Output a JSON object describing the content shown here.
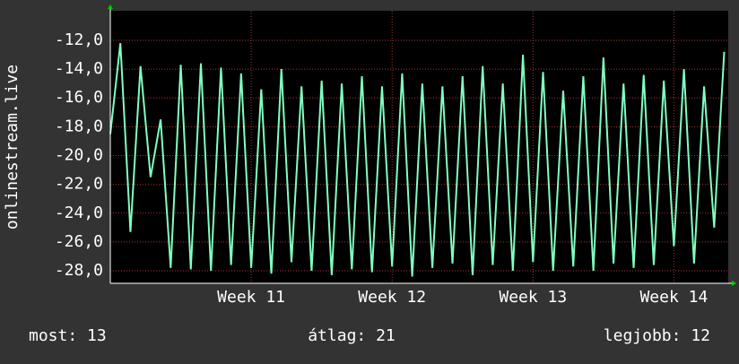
{
  "chart_data": {
    "type": "line",
    "ylabel": "onlinestream.live",
    "x": [
      0,
      0.5,
      1,
      1.5,
      2,
      2.5,
      3,
      3.5,
      4,
      4.5,
      5,
      5.5,
      6,
      6.5,
      7,
      7.5,
      8,
      8.5,
      9,
      9.5,
      10,
      10.5,
      11,
      11.5,
      12,
      12.5,
      13,
      13.5,
      14,
      14.5,
      15,
      15.5,
      16,
      16.5,
      17,
      17.5,
      18,
      18.5,
      19,
      19.5,
      20,
      20.5,
      21,
      21.5,
      22,
      22.5,
      23,
      23.5,
      24,
      24.5,
      25,
      25.5,
      26,
      26.5,
      27,
      27.5,
      28,
      28.5,
      29,
      29.5,
      30,
      30.5
    ],
    "series": [
      {
        "name": "onlinestream.live",
        "color": "#80ffc0",
        "values": [
          -18.5,
          -12.2,
          -25.3,
          -13.8,
          -21.5,
          -17.5,
          -27.8,
          -13.7,
          -27.9,
          -13.6,
          -28.0,
          -13.9,
          -27.6,
          -14.3,
          -27.8,
          -15.4,
          -28.2,
          -14.0,
          -27.4,
          -15.2,
          -28.0,
          -14.8,
          -28.3,
          -15.0,
          -27.9,
          -14.5,
          -28.1,
          -15.2,
          -27.7,
          -14.3,
          -28.4,
          -15.0,
          -27.8,
          -15.2,
          -27.5,
          -14.5,
          -28.3,
          -13.8,
          -27.6,
          -15.0,
          -28.0,
          -13.0,
          -27.4,
          -14.2,
          -28.0,
          -15.5,
          -27.7,
          -14.5,
          -28.0,
          -13.2,
          -27.5,
          -15.0,
          -27.8,
          -14.4,
          -27.6,
          -14.8,
          -26.3,
          -14.0,
          -27.5,
          -15.2,
          -25.0,
          -12.8
        ]
      }
    ],
    "xlim": [
      0,
      30.7
    ],
    "xticks": [
      {
        "value": 7,
        "label": "Week 11"
      },
      {
        "value": 14,
        "label": "Week 12"
      },
      {
        "value": 21,
        "label": "Week 13"
      },
      {
        "value": 28,
        "label": "Week 14"
      }
    ],
    "ylim": [
      -28.87,
      -9.95
    ],
    "yticks": [
      {
        "value": -28,
        "label": "-28,0"
      },
      {
        "value": -26,
        "label": "-26,0"
      },
      {
        "value": -24,
        "label": "-24,0"
      },
      {
        "value": -22,
        "label": "-22,0"
      },
      {
        "value": -20,
        "label": "-20,0"
      },
      {
        "value": -18,
        "label": "-18,0"
      },
      {
        "value": -16,
        "label": "-16,0"
      },
      {
        "value": -14,
        "label": "-14,0"
      },
      {
        "value": -12,
        "label": "-12,0"
      }
    ],
    "grid": true,
    "footer": [
      "most: 13",
      "átlag: 21",
      "legjobb: 12"
    ]
  }
}
